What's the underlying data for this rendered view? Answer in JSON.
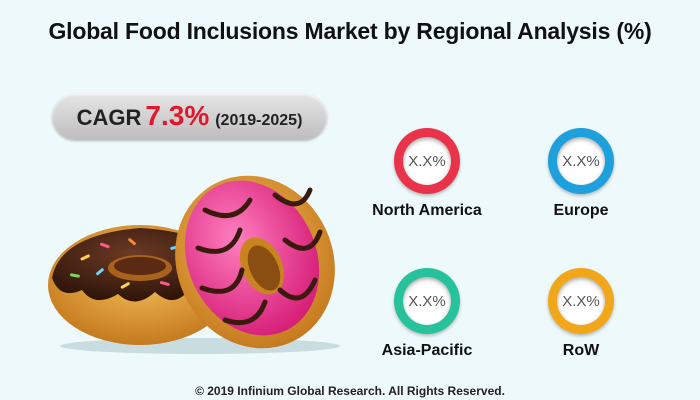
{
  "title": "Global Food Inclusions Market by Regional Analysis (%)",
  "cagr": {
    "label": "CAGR",
    "value": "7.3%",
    "period": "(2019-2025)"
  },
  "chart_data": {
    "type": "other",
    "title": "Global Food Inclusions Market by Regional Analysis (%)",
    "regions": [
      {
        "name": "North America",
        "value": "X.X%",
        "color": "#e8334a"
      },
      {
        "name": "Europe",
        "value": "X.X%",
        "color": "#1ea0dc"
      },
      {
        "name": "Asia-Pacific",
        "value": "X.X%",
        "color": "#26c29b"
      },
      {
        "name": "RoW",
        "value": "X.X%",
        "color": "#f2a71b"
      }
    ]
  },
  "footer": "© 2019 Infinium Global Research. All Rights Reserved.",
  "colors": {
    "background": "#eef9fb",
    "accent": "#e3162a"
  }
}
